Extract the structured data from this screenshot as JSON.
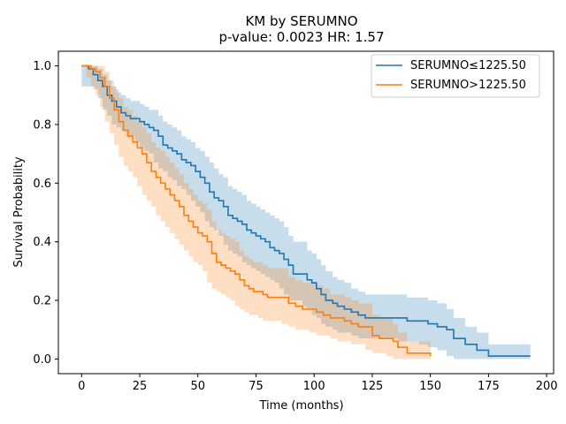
{
  "chart_data": {
    "type": "line",
    "title_line1": "KM by SERUMNO",
    "title_line2": "p-value: 0.0023  HR: 1.57",
    "xlabel": "Time (months)",
    "ylabel": "Survival Probability",
    "xlim": [
      -10,
      203
    ],
    "ylim": [
      -0.05,
      1.05
    ],
    "xticks": [
      0,
      25,
      50,
      75,
      100,
      125,
      150,
      175,
      200
    ],
    "yticks": [
      0.0,
      0.2,
      0.4,
      0.6,
      0.8,
      1.0
    ],
    "xtick_labels": [
      "0",
      "25",
      "50",
      "75",
      "100",
      "125",
      "150",
      "175",
      "200"
    ],
    "ytick_labels": [
      "0.0",
      "0.2",
      "0.4",
      "0.6",
      "0.8",
      "1.0"
    ],
    "legend_position": "upper-right",
    "grid": false,
    "series": [
      {
        "name": "SERUMNO≤1225.50",
        "color": "#1f77b4",
        "x": [
          0,
          3,
          5,
          7,
          9,
          11,
          13,
          15,
          17,
          19,
          21,
          23,
          25,
          27,
          29,
          31,
          33,
          35,
          37,
          39,
          41,
          43,
          45,
          47,
          49,
          51,
          53,
          55,
          57,
          59,
          61,
          63,
          65,
          67,
          69,
          71,
          73,
          75,
          77,
          79,
          81,
          83,
          85,
          87,
          89,
          91,
          93,
          95,
          97,
          99,
          101,
          103,
          105,
          108,
          110,
          113,
          116,
          119,
          122,
          125,
          128,
          132,
          136,
          140,
          145,
          149,
          153,
          157,
          160,
          165,
          170,
          175,
          193
        ],
        "y": [
          1.0,
          0.99,
          0.97,
          0.95,
          0.93,
          0.9,
          0.88,
          0.86,
          0.84,
          0.83,
          0.82,
          0.82,
          0.81,
          0.8,
          0.79,
          0.78,
          0.76,
          0.73,
          0.72,
          0.71,
          0.7,
          0.68,
          0.67,
          0.66,
          0.64,
          0.62,
          0.6,
          0.57,
          0.55,
          0.54,
          0.52,
          0.49,
          0.48,
          0.47,
          0.46,
          0.44,
          0.43,
          0.42,
          0.41,
          0.4,
          0.38,
          0.37,
          0.36,
          0.34,
          0.32,
          0.29,
          0.29,
          0.29,
          0.27,
          0.26,
          0.24,
          0.22,
          0.2,
          0.19,
          0.18,
          0.17,
          0.16,
          0.15,
          0.14,
          0.14,
          0.14,
          0.14,
          0.14,
          0.13,
          0.13,
          0.12,
          0.11,
          0.1,
          0.07,
          0.05,
          0.03,
          0.01,
          0.01
        ],
        "ci_lower": [
          1.0,
          0.93,
          0.93,
          0.92,
          0.89,
          0.85,
          0.83,
          0.8,
          0.79,
          0.78,
          0.76,
          0.76,
          0.74,
          0.72,
          0.71,
          0.7,
          0.67,
          0.65,
          0.64,
          0.62,
          0.61,
          0.59,
          0.58,
          0.56,
          0.54,
          0.52,
          0.5,
          0.47,
          0.45,
          0.44,
          0.42,
          0.39,
          0.37,
          0.36,
          0.35,
          0.33,
          0.32,
          0.31,
          0.3,
          0.29,
          0.28,
          0.27,
          0.26,
          0.24,
          0.22,
          0.2,
          0.2,
          0.2,
          0.18,
          0.17,
          0.15,
          0.14,
          0.12,
          0.11,
          0.1,
          0.09,
          0.09,
          0.08,
          0.07,
          0.07,
          0.07,
          0.07,
          0.07,
          0.06,
          0.06,
          0.05,
          0.04,
          0.03,
          0.01,
          0.0,
          0.0,
          0.0,
          0.0
        ],
        "ci_upper": [
          1.0,
          1.0,
          1.0,
          0.99,
          0.97,
          0.95,
          0.93,
          0.91,
          0.9,
          0.89,
          0.88,
          0.88,
          0.87,
          0.86,
          0.85,
          0.85,
          0.83,
          0.81,
          0.8,
          0.79,
          0.78,
          0.76,
          0.75,
          0.74,
          0.72,
          0.71,
          0.69,
          0.67,
          0.65,
          0.63,
          0.62,
          0.59,
          0.58,
          0.57,
          0.56,
          0.54,
          0.53,
          0.52,
          0.51,
          0.5,
          0.49,
          0.48,
          0.47,
          0.45,
          0.42,
          0.4,
          0.4,
          0.4,
          0.37,
          0.36,
          0.34,
          0.32,
          0.3,
          0.28,
          0.27,
          0.26,
          0.24,
          0.23,
          0.22,
          0.22,
          0.22,
          0.22,
          0.22,
          0.21,
          0.21,
          0.2,
          0.19,
          0.17,
          0.14,
          0.11,
          0.09,
          0.05,
          0.05
        ]
      },
      {
        "name": "SERUMNO>1225.50",
        "color": "#ff7f0e",
        "x": [
          0,
          2,
          4,
          6,
          8,
          10,
          12,
          14,
          16,
          18,
          20,
          22,
          24,
          26,
          28,
          30,
          32,
          34,
          36,
          38,
          40,
          42,
          44,
          46,
          48,
          50,
          52,
          54,
          56,
          58,
          60,
          62,
          64,
          66,
          68,
          70,
          72,
          74,
          76,
          78,
          80,
          83,
          86,
          89,
          92,
          95,
          98,
          101,
          104,
          107,
          110,
          113,
          116,
          119,
          122,
          125,
          128,
          131,
          134,
          136,
          140,
          145,
          150
        ],
        "y": [
          1.0,
          1.0,
          0.99,
          0.98,
          0.96,
          0.93,
          0.89,
          0.85,
          0.81,
          0.78,
          0.76,
          0.74,
          0.72,
          0.7,
          0.67,
          0.64,
          0.62,
          0.6,
          0.58,
          0.56,
          0.54,
          0.52,
          0.49,
          0.47,
          0.45,
          0.43,
          0.42,
          0.4,
          0.36,
          0.33,
          0.32,
          0.31,
          0.3,
          0.29,
          0.27,
          0.25,
          0.24,
          0.23,
          0.23,
          0.22,
          0.21,
          0.21,
          0.21,
          0.19,
          0.18,
          0.17,
          0.17,
          0.16,
          0.15,
          0.14,
          0.14,
          0.13,
          0.12,
          0.11,
          0.11,
          0.08,
          0.07,
          0.07,
          0.06,
          0.04,
          0.02,
          0.02,
          0.01
        ],
        "ci_lower": [
          1.0,
          1.0,
          0.96,
          0.93,
          0.9,
          0.86,
          0.81,
          0.77,
          0.73,
          0.69,
          0.66,
          0.64,
          0.62,
          0.59,
          0.56,
          0.54,
          0.52,
          0.49,
          0.47,
          0.45,
          0.43,
          0.41,
          0.39,
          0.37,
          0.35,
          0.33,
          0.32,
          0.3,
          0.26,
          0.24,
          0.23,
          0.22,
          0.21,
          0.2,
          0.18,
          0.17,
          0.16,
          0.15,
          0.15,
          0.14,
          0.13,
          0.13,
          0.13,
          0.12,
          0.11,
          0.1,
          0.1,
          0.09,
          0.08,
          0.08,
          0.07,
          0.06,
          0.06,
          0.05,
          0.05,
          0.03,
          0.02,
          0.02,
          0.01,
          0.0,
          0.0,
          0.0,
          0.0
        ],
        "ci_upper": [
          1.0,
          1.0,
          1.0,
          1.0,
          1.0,
          0.98,
          0.95,
          0.92,
          0.89,
          0.86,
          0.85,
          0.83,
          0.81,
          0.79,
          0.77,
          0.74,
          0.72,
          0.71,
          0.69,
          0.67,
          0.65,
          0.63,
          0.6,
          0.58,
          0.56,
          0.54,
          0.53,
          0.51,
          0.47,
          0.44,
          0.43,
          0.42,
          0.41,
          0.4,
          0.37,
          0.35,
          0.34,
          0.33,
          0.33,
          0.32,
          0.31,
          0.31,
          0.31,
          0.28,
          0.27,
          0.26,
          0.26,
          0.25,
          0.24,
          0.22,
          0.22,
          0.21,
          0.2,
          0.19,
          0.19,
          0.15,
          0.14,
          0.14,
          0.12,
          0.09,
          0.06,
          0.06,
          0.04
        ]
      }
    ]
  }
}
